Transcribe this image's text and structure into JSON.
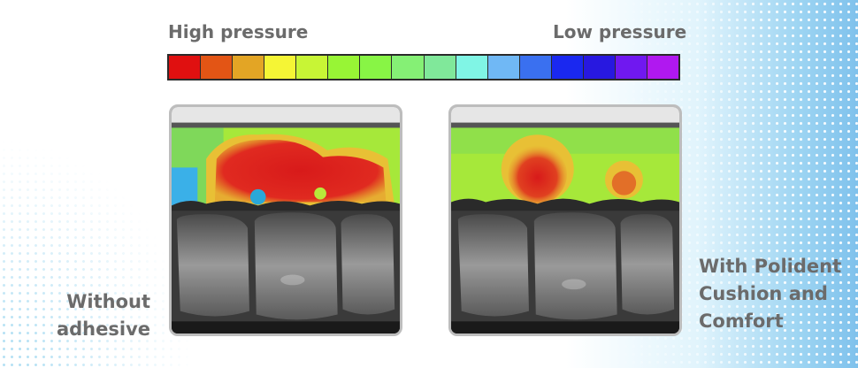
{
  "legend": {
    "high_label": "High pressure",
    "low_label": "Low pressure",
    "swatches": [
      "#e01010",
      "#e35515",
      "#e3a525",
      "#f5f535",
      "#c8f535",
      "#98f535",
      "#88f545",
      "#85f075",
      "#80e89a",
      "#80f5e5",
      "#70b8f5",
      "#3a70f0",
      "#1a28f0",
      "#2818e0",
      "#7018f0",
      "#b018f0"
    ]
  },
  "captions": {
    "without": [
      "Without",
      "adhesive"
    ],
    "with": [
      "With Polident",
      "Cushion and",
      "Comfort"
    ]
  },
  "colors": {
    "text": "#6b6b6b",
    "frame": "#bdbdbd"
  }
}
